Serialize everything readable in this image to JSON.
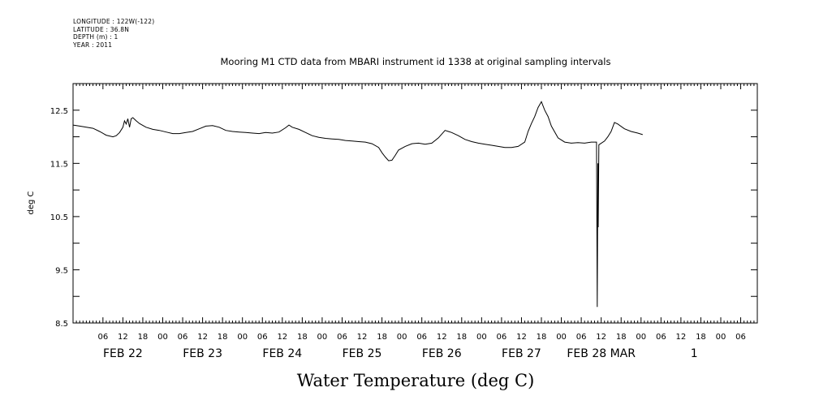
{
  "meta": {
    "longitude": "LONGITUDE : 122W(-122)",
    "latitude": "LATITUDE : 36.8N",
    "depth": "DEPTH (m) : 1",
    "year": "YEAR : 2011"
  },
  "chart_data": {
    "type": "line",
    "title": "Mooring M1 CTD data from MBARI instrument id 1338 at original sampling intervals",
    "xlabel": "Water Temperature (deg C)",
    "ylabel": "deg C",
    "ylim": [
      8.5,
      13.0
    ],
    "yticks": [
      {
        "value": 12.5,
        "label": "12.5"
      },
      {
        "value": 11.5,
        "label": "11.5"
      },
      {
        "value": 10.5,
        "label": "10.5"
      },
      {
        "value": 9.5,
        "label": "9.5"
      },
      {
        "value": 8.5,
        "label": "8.5"
      }
    ],
    "xlim_hours": [
      0,
      206
    ],
    "x_unit": "hours since FEB 21 21:00, 2011",
    "hour_ticks": [
      {
        "hour": 9,
        "label": "06"
      },
      {
        "hour": 15,
        "label": "12"
      },
      {
        "hour": 21,
        "label": "18"
      },
      {
        "hour": 27,
        "label": "00"
      },
      {
        "hour": 33,
        "label": "06"
      },
      {
        "hour": 39,
        "label": "12"
      },
      {
        "hour": 45,
        "label": "18"
      },
      {
        "hour": 51,
        "label": "00"
      },
      {
        "hour": 57,
        "label": "06"
      },
      {
        "hour": 63,
        "label": "12"
      },
      {
        "hour": 69,
        "label": "18"
      },
      {
        "hour": 75,
        "label": "00"
      },
      {
        "hour": 81,
        "label": "06"
      },
      {
        "hour": 87,
        "label": "12"
      },
      {
        "hour": 93,
        "label": "18"
      },
      {
        "hour": 99,
        "label": "00"
      },
      {
        "hour": 105,
        "label": "06"
      },
      {
        "hour": 111,
        "label": "12"
      },
      {
        "hour": 117,
        "label": "18"
      },
      {
        "hour": 123,
        "label": "00"
      },
      {
        "hour": 129,
        "label": "06"
      },
      {
        "hour": 135,
        "label": "12"
      },
      {
        "hour": 141,
        "label": "18"
      },
      {
        "hour": 147,
        "label": "00"
      },
      {
        "hour": 153,
        "label": "06"
      },
      {
        "hour": 159,
        "label": "12"
      },
      {
        "hour": 165,
        "label": "18"
      },
      {
        "hour": 171,
        "label": "00"
      },
      {
        "hour": 177,
        "label": "06"
      },
      {
        "hour": 183,
        "label": "12"
      },
      {
        "hour": 189,
        "label": "18"
      },
      {
        "hour": 195,
        "label": "00"
      },
      {
        "hour": 201,
        "label": "06"
      }
    ],
    "date_labels": [
      {
        "hour": 15,
        "label": "FEB 22"
      },
      {
        "hour": 39,
        "label": "FEB 23"
      },
      {
        "hour": 63,
        "label": "FEB 24"
      },
      {
        "hour": 87,
        "label": "FEB 25"
      },
      {
        "hour": 111,
        "label": "FEB 26"
      },
      {
        "hour": 135,
        "label": "FEB 27"
      },
      {
        "hour": 159,
        "label": "FEB 28 MAR"
      },
      {
        "hour": 187,
        "label": "1"
      }
    ],
    "series": [
      {
        "points": [
          [
            0,
            12.22
          ],
          [
            2,
            12.2
          ],
          [
            4,
            12.18
          ],
          [
            6,
            12.16
          ],
          [
            8,
            12.1
          ],
          [
            10,
            12.03
          ],
          [
            12,
            12.0
          ],
          [
            13,
            12.02
          ],
          [
            14,
            12.08
          ],
          [
            15,
            12.18
          ],
          [
            15.5,
            12.3
          ],
          [
            16,
            12.24
          ],
          [
            16.5,
            12.34
          ],
          [
            17,
            12.18
          ],
          [
            17.5,
            12.34
          ],
          [
            18,
            12.36
          ],
          [
            19,
            12.3
          ],
          [
            20,
            12.25
          ],
          [
            22,
            12.18
          ],
          [
            24,
            12.14
          ],
          [
            26,
            12.12
          ],
          [
            28,
            12.09
          ],
          [
            30,
            12.06
          ],
          [
            32,
            12.06
          ],
          [
            34,
            12.08
          ],
          [
            36,
            12.1
          ],
          [
            38,
            12.15
          ],
          [
            40,
            12.2
          ],
          [
            42,
            12.21
          ],
          [
            44,
            12.18
          ],
          [
            46,
            12.12
          ],
          [
            48,
            12.1
          ],
          [
            50,
            12.09
          ],
          [
            52,
            12.08
          ],
          [
            54,
            12.07
          ],
          [
            56,
            12.06
          ],
          [
            58,
            12.08
          ],
          [
            60,
            12.07
          ],
          [
            62,
            12.09
          ],
          [
            64,
            12.17
          ],
          [
            65,
            12.22
          ],
          [
            66,
            12.18
          ],
          [
            68,
            12.14
          ],
          [
            70,
            12.08
          ],
          [
            72,
            12.02
          ],
          [
            74,
            11.99
          ],
          [
            76,
            11.97
          ],
          [
            78,
            11.96
          ],
          [
            80,
            11.95
          ],
          [
            82,
            11.93
          ],
          [
            84,
            11.92
          ],
          [
            86,
            11.91
          ],
          [
            88,
            11.9
          ],
          [
            90,
            11.87
          ],
          [
            92,
            11.8
          ],
          [
            93,
            11.7
          ],
          [
            94,
            11.62
          ],
          [
            95,
            11.55
          ],
          [
            96,
            11.56
          ],
          [
            97,
            11.65
          ],
          [
            98,
            11.75
          ],
          [
            100,
            11.82
          ],
          [
            102,
            11.87
          ],
          [
            104,
            11.88
          ],
          [
            106,
            11.86
          ],
          [
            108,
            11.88
          ],
          [
            110,
            11.98
          ],
          [
            112,
            12.12
          ],
          [
            113,
            12.1
          ],
          [
            114,
            12.08
          ],
          [
            116,
            12.02
          ],
          [
            118,
            11.95
          ],
          [
            120,
            11.91
          ],
          [
            122,
            11.88
          ],
          [
            124,
            11.86
          ],
          [
            126,
            11.84
          ],
          [
            128,
            11.82
          ],
          [
            130,
            11.8
          ],
          [
            132,
            11.8
          ],
          [
            134,
            11.82
          ],
          [
            136,
            11.9
          ],
          [
            137,
            12.1
          ],
          [
            138,
            12.25
          ],
          [
            139,
            12.38
          ],
          [
            140,
            12.55
          ],
          [
            141,
            12.66
          ],
          [
            142,
            12.5
          ],
          [
            143,
            12.38
          ],
          [
            144,
            12.2
          ],
          [
            146,
            11.98
          ],
          [
            148,
            11.9
          ],
          [
            150,
            11.88
          ],
          [
            152,
            11.89
          ],
          [
            154,
            11.88
          ],
          [
            156,
            11.9
          ],
          [
            157,
            11.9
          ],
          [
            157.6,
            11.9
          ],
          [
            157.8,
            8.8
          ],
          [
            158.0,
            11.5
          ],
          [
            158.1,
            10.3
          ],
          [
            158.3,
            11.85
          ],
          [
            160,
            11.92
          ],
          [
            161,
            12.0
          ],
          [
            162,
            12.1
          ],
          [
            163,
            12.27
          ],
          [
            164,
            12.24
          ],
          [
            166,
            12.15
          ],
          [
            168,
            12.1
          ],
          [
            170,
            12.07
          ],
          [
            171.5,
            12.04
          ]
        ]
      }
    ]
  }
}
